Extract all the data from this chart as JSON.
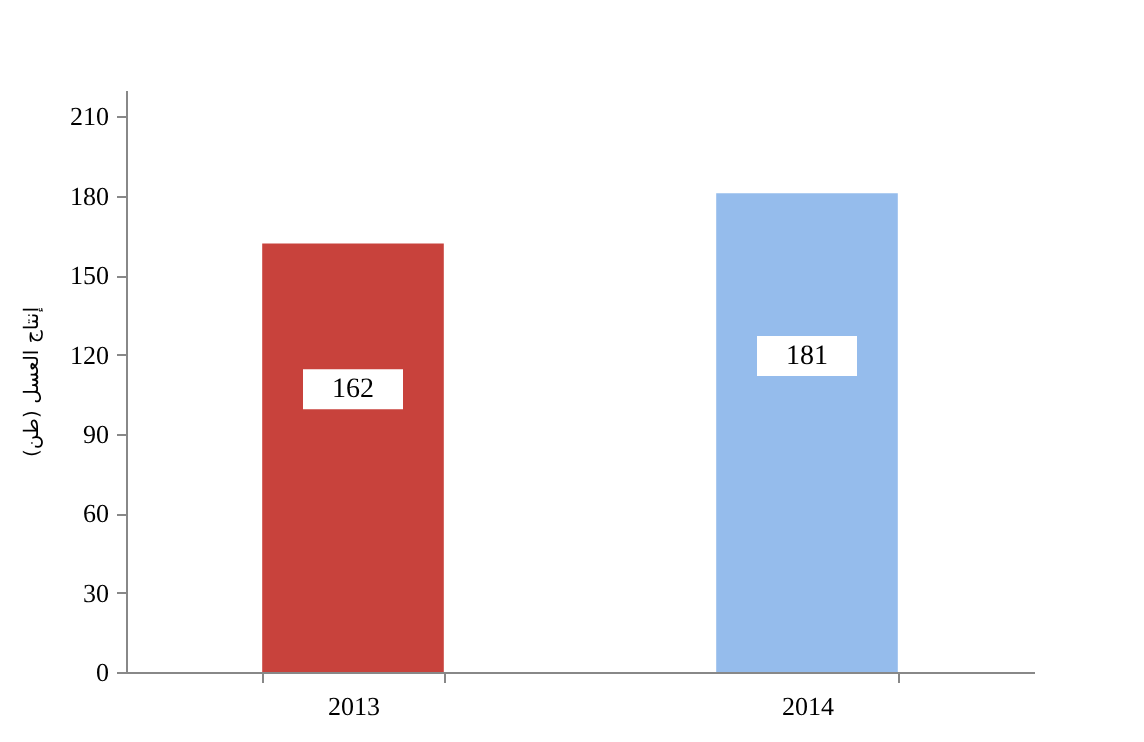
{
  "chart_data": {
    "type": "bar",
    "ylabel": "إنتاج العسل (طن)",
    "categories": [
      "2013",
      "2014"
    ],
    "values": [
      162,
      181
    ],
    "colors": [
      "#c8423c",
      "#95bcec"
    ],
    "ylim": [
      0,
      220
    ],
    "yticks": [
      0,
      30,
      60,
      90,
      120,
      150,
      180,
      210
    ],
    "data_labels": true,
    "grid": false
  }
}
